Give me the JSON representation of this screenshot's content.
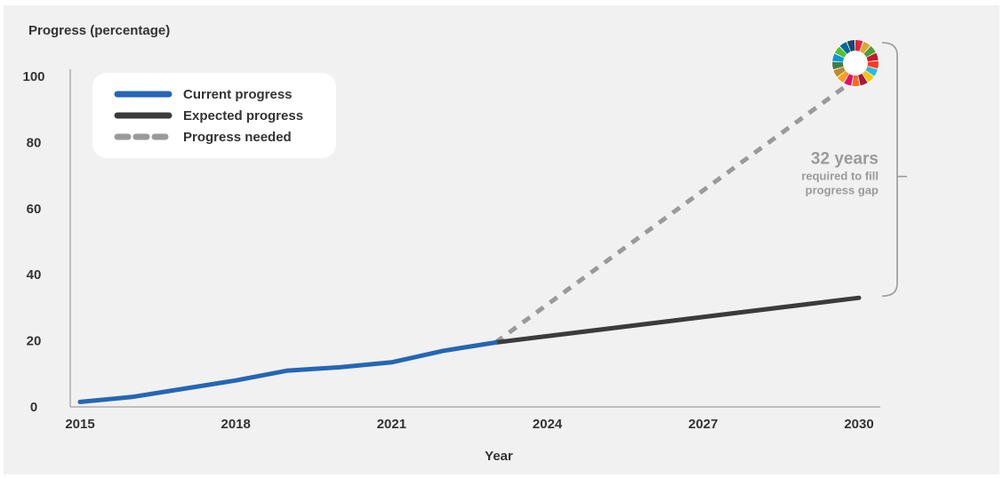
{
  "chart_data": {
    "type": "line",
    "ylabel": "Progress (percentage)",
    "xlabel": "Year",
    "xlim": [
      2015,
      2030
    ],
    "ylim": [
      0,
      100
    ],
    "x_ticks": [
      2015,
      2018,
      2021,
      2024,
      2027,
      2030
    ],
    "y_ticks": [
      0,
      20,
      40,
      60,
      80,
      100
    ],
    "grid": false,
    "legend_position": "top-left",
    "series": [
      {
        "name": "Current progress",
        "color": "#2566b4",
        "style": "solid",
        "x": [
          2015,
          2016,
          2017,
          2018,
          2019,
          2020,
          2021,
          2022,
          2023
        ],
        "y": [
          1.5,
          3,
          5.5,
          8,
          11,
          12,
          13.5,
          17,
          19.5
        ]
      },
      {
        "name": "Expected progress",
        "color": "#3b3b3b",
        "style": "solid",
        "x": [
          2023,
          2030
        ],
        "y": [
          19.5,
          33
        ]
      },
      {
        "name": "Progress needed",
        "color": "#9a9a9a",
        "style": "dashed",
        "x": [
          2023,
          2030
        ],
        "y": [
          19.5,
          100
        ]
      }
    ],
    "annotation": {
      "headline": "32 years",
      "line1": "required to fill",
      "line2": "progress gap",
      "color": "#9a9a9a",
      "bracket_from_y": 33,
      "bracket_to_y": 100,
      "at_x": 2030
    },
    "goal_icon": "sdg-wheel-icon",
    "goal_colors": [
      "#e5243b",
      "#dda63a",
      "#4c9f38",
      "#c5192d",
      "#ff3a21",
      "#26bde2",
      "#fcc30b",
      "#a21942",
      "#fd6925",
      "#dd1367",
      "#fd9d24",
      "#bf8b2e",
      "#3f7e44",
      "#0a97d9",
      "#56c02b",
      "#00689d",
      "#19486a"
    ]
  }
}
